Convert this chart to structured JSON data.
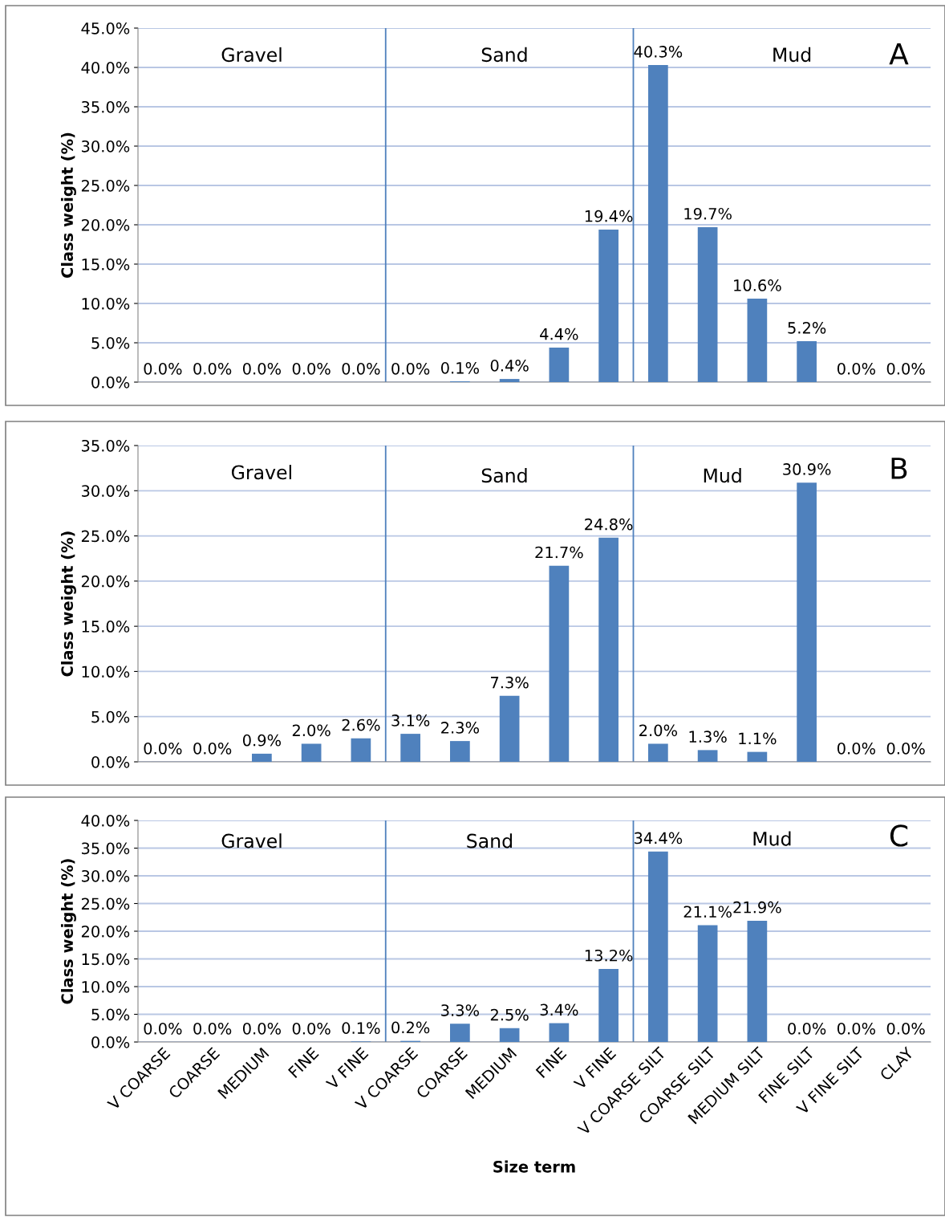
{
  "chart_data": [
    {
      "type": "bar",
      "ylabel": "Class weight (%)",
      "categories": [
        null,
        null,
        null,
        null,
        null,
        null,
        null,
        null,
        null,
        null,
        null,
        null,
        null,
        null,
        null,
        null
      ],
      "color": "#4f81bd",
      "values": [
        0.0,
        0.0,
        0.0,
        0.0,
        0.0,
        0.0,
        0.1,
        0.4,
        4.4,
        19.4,
        40.3,
        19.7,
        10.6,
        5.2,
        0.0,
        0.0
      ],
      "value_labels": [
        "0.0%",
        "0.0%",
        "0.0%",
        "0.0%",
        "0.0%",
        "0.0%",
        "0.1%",
        "0.4%",
        "4.4%",
        "19.4%",
        "40.3%",
        "19.7%",
        "10.6%",
        "5.2%",
        "0.0%",
        "0.0%"
      ],
      "ylim": [
        0,
        45
      ],
      "yticks": [
        {
          "value": 0,
          "label": "0.0%"
        },
        {
          "value": 5,
          "label": "5.0%"
        },
        {
          "value": 10,
          "label": "10.0%"
        },
        {
          "value": 15,
          "label": "15.0%"
        },
        {
          "value": 20,
          "label": "20.0%"
        },
        {
          "value": 25,
          "label": "25.0%"
        },
        {
          "value": 30,
          "label": "30.0%"
        },
        {
          "value": 35,
          "label": "35.0%"
        },
        {
          "value": 40,
          "label": "40.0%"
        },
        {
          "value": 45,
          "label": "45.0%"
        }
      ],
      "grid": "y",
      "annotations": [
        "Gravel",
        "Sand",
        "Mud",
        "A"
      ]
    },
    {
      "type": "bar",
      "ylabel": "Class weight (%)",
      "categories": [
        null,
        null,
        null,
        null,
        null,
        null,
        null,
        null,
        null,
        null,
        null,
        null,
        null,
        null,
        null,
        null
      ],
      "color": "#4f81bd",
      "values": [
        0.0,
        0.0,
        0.9,
        2.0,
        2.6,
        3.1,
        2.3,
        7.3,
        21.7,
        24.8,
        2.0,
        1.3,
        1.1,
        30.9,
        0.0,
        0.0
      ],
      "value_labels": [
        "0.0%",
        "0.0%",
        "0.9%",
        "2.0%",
        "2.6%",
        "3.1%",
        "2.3%",
        "7.3%",
        "21.7%",
        "24.8%",
        "2.0%",
        "1.3%",
        "1.1%",
        "30.9%",
        "0.0%",
        "0.0%"
      ],
      "ylim": [
        0,
        35
      ],
      "yticks": [
        {
          "value": 0,
          "label": "0.0%"
        },
        {
          "value": 5,
          "label": "5.0%"
        },
        {
          "value": 10,
          "label": "10.0%"
        },
        {
          "value": 15,
          "label": "15.0%"
        },
        {
          "value": 20,
          "label": "20.0%"
        },
        {
          "value": 25,
          "label": "25.0%"
        },
        {
          "value": 30,
          "label": "30.0%"
        },
        {
          "value": 35,
          "label": "35.0%"
        }
      ],
      "grid": "y",
      "annotations": [
        "Gravel",
        "Sand",
        "Mud",
        "B"
      ]
    },
    {
      "type": "bar",
      "ylabel": "Class weight (%)",
      "xlabel": "Size term",
      "categories": [
        "V COARSE",
        "COARSE",
        "MEDIUM",
        "FINE",
        "V FINE",
        "V COARSE",
        "COARSE",
        "MEDIUM",
        "FINE",
        "V FINE",
        "V COARSE SILT",
        "COARSE SILT",
        "MEDIUM SILT",
        "FINE SILT",
        "V FINE SILT",
        "CLAY"
      ],
      "color": "#4f81bd",
      "values": [
        0.0,
        0.0,
        0.0,
        0.0,
        0.1,
        0.2,
        3.3,
        2.5,
        3.4,
        13.2,
        34.4,
        21.1,
        21.9,
        0.0,
        0.0,
        0.0
      ],
      "value_labels": [
        "0.0%",
        "0.0%",
        "0.0%",
        "0.0%",
        "0.1%",
        "0.2%",
        "3.3%",
        "2.5%",
        "3.4%",
        "13.2%",
        "34.4%",
        "21.1%",
        "21.9%",
        "0.0%",
        "0.0%",
        "0.0%"
      ],
      "ylim": [
        0,
        40
      ],
      "yticks": [
        {
          "value": 0,
          "label": "0.0%"
        },
        {
          "value": 5,
          "label": "5.0%"
        },
        {
          "value": 10,
          "label": "10.0%"
        },
        {
          "value": 15,
          "label": "15.0%"
        },
        {
          "value": 20,
          "label": "20.0%"
        },
        {
          "value": 25,
          "label": "25.0%"
        },
        {
          "value": 30,
          "label": "30.0%"
        },
        {
          "value": 35,
          "label": "35.0%"
        },
        {
          "value": 40,
          "label": "40.0%"
        }
      ],
      "grid": "y",
      "annotations": [
        "Gravel",
        "Sand",
        "Mud",
        "C"
      ]
    }
  ]
}
